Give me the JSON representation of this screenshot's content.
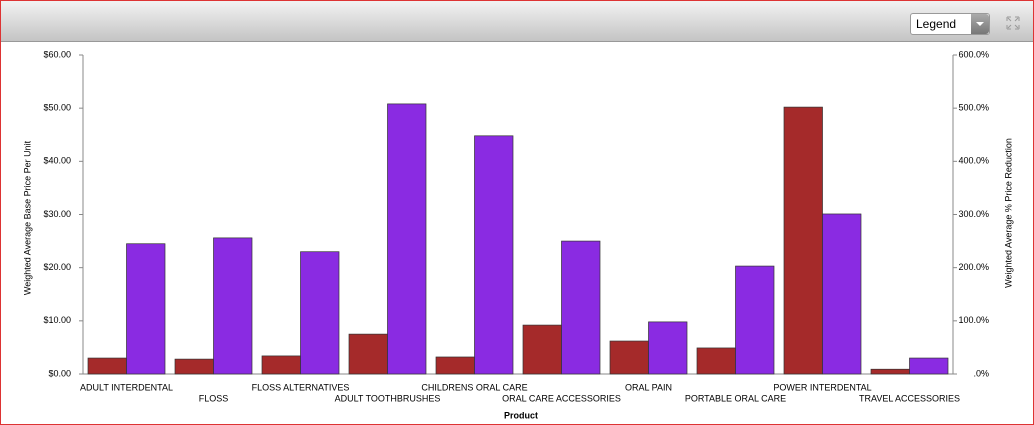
{
  "toolbar": {
    "legend_select": "Legend"
  },
  "chart_data": {
    "type": "bar",
    "x_label": "Product",
    "y_label": "Weighted Average Base Price Per Unit",
    "y2_label": "Weighted Average % Price Reduction",
    "categories": [
      "ADULT INTERDENTAL",
      "FLOSS",
      "FLOSS ALTERNATIVES",
      "ADULT TOOTHBRUSHES",
      "CHILDRENS ORAL CARE",
      "ORAL CARE ACCESSORIES",
      "ORAL PAIN",
      "PORTABLE ORAL CARE",
      "POWER INTERDENTAL",
      "TRAVEL ACCESSORIES"
    ],
    "series": [
      {
        "color": "#a52a2a",
        "values": [
          3.0,
          2.8,
          3.4,
          7.5,
          3.2,
          9.2,
          6.2,
          4.9,
          50.2,
          0.9
        ]
      },
      {
        "color": "#8a2be2",
        "axis": "y2",
        "values": [
          245,
          256,
          230,
          508,
          448,
          250,
          98,
          203,
          301,
          30
        ]
      }
    ],
    "ylim": [
      0,
      60
    ],
    "yticks": [
      {
        "value": 0,
        "label": "$0.00"
      },
      {
        "value": 10,
        "label": "$10.00"
      },
      {
        "value": 20,
        "label": "$20.00"
      },
      {
        "value": 30,
        "label": "$30.00"
      },
      {
        "value": 40,
        "label": "$40.00"
      },
      {
        "value": 50,
        "label": "$50.00"
      },
      {
        "value": 60,
        "label": "$60.00"
      }
    ],
    "y2lim": [
      0,
      600
    ],
    "y2ticks": [
      {
        "value": 0,
        "label": ".0%"
      },
      {
        "value": 100,
        "label": "100.0%"
      },
      {
        "value": 200,
        "label": "200.0%"
      },
      {
        "value": 300,
        "label": "300.0%"
      },
      {
        "value": 400,
        "label": "400.0%"
      },
      {
        "value": 500,
        "label": "500.0%"
      },
      {
        "value": 600,
        "label": "600.0%"
      }
    ],
    "grid": false
  }
}
